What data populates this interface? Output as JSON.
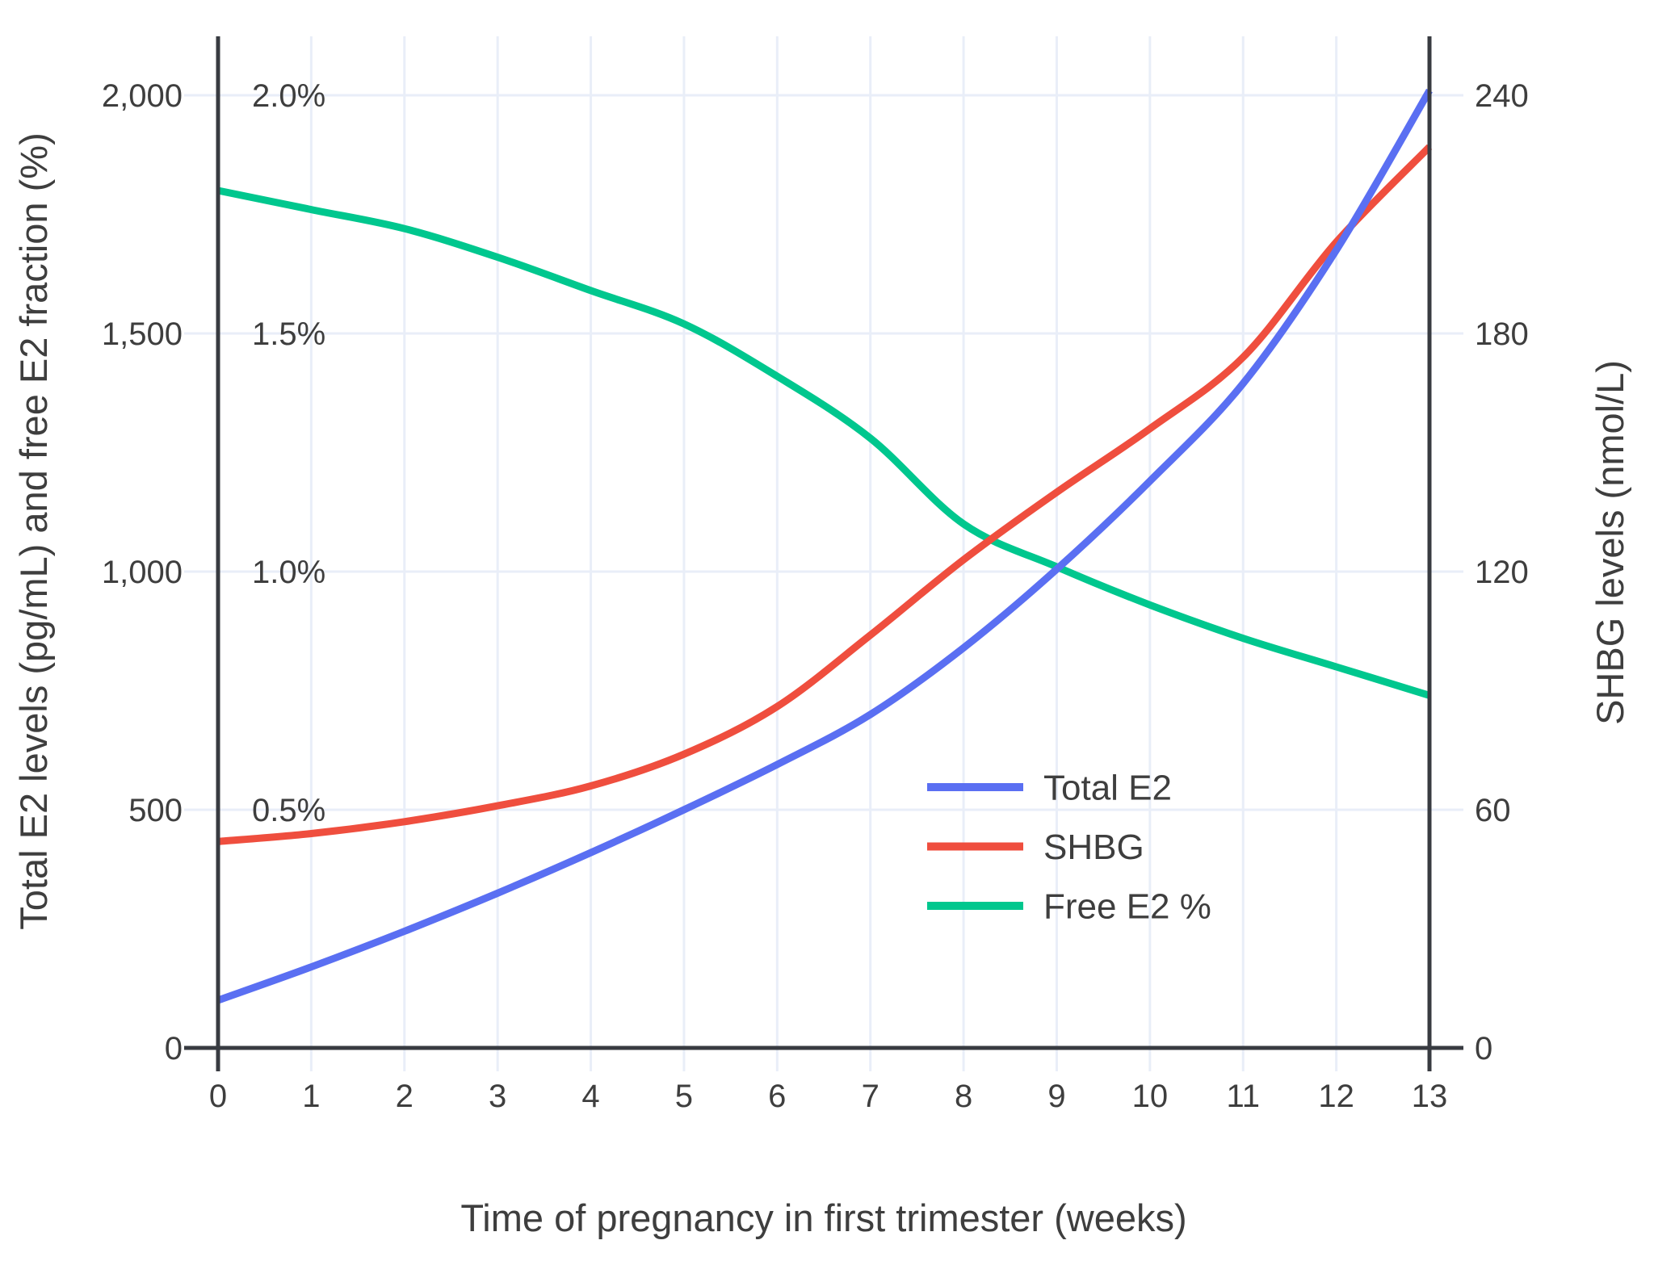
{
  "chart_data": {
    "type": "line",
    "title": "",
    "x_values": [
      0,
      1,
      2,
      3,
      4,
      5,
      6,
      7,
      8,
      9,
      10,
      11,
      12,
      13
    ],
    "xlabel": "Time of pregnancy in first trimester (weeks)",
    "ylabel_left": "Total E2 levels (pg/mL) and free E2 fraction (%)",
    "ylabel_right": "SHBG levels (nmol/L)",
    "grid": true,
    "legend_position": "inside-right-middle",
    "axes": {
      "x_ticks": [
        {
          "value": 0,
          "label": "0"
        },
        {
          "value": 1,
          "label": "1"
        },
        {
          "value": 2,
          "label": "2"
        },
        {
          "value": 3,
          "label": "3"
        },
        {
          "value": 4,
          "label": "4"
        },
        {
          "value": 5,
          "label": "5"
        },
        {
          "value": 6,
          "label": "6"
        },
        {
          "value": 7,
          "label": "7"
        },
        {
          "value": 8,
          "label": "8"
        },
        {
          "value": 9,
          "label": "9"
        },
        {
          "value": 10,
          "label": "10"
        },
        {
          "value": 11,
          "label": "11"
        },
        {
          "value": 12,
          "label": "12"
        },
        {
          "value": 13,
          "label": "13"
        }
      ],
      "left_ticks": [
        {
          "value": 0,
          "label": "0"
        },
        {
          "value": 500,
          "label": "500"
        },
        {
          "value": 1000,
          "label": "1,000"
        },
        {
          "value": 1500,
          "label": "1,500"
        },
        {
          "value": 2000,
          "label": "2,000"
        }
      ],
      "left_percent_ticks": [
        {
          "value": 0.5,
          "label": "0.5%"
        },
        {
          "value": 1.0,
          "label": "1.0%"
        },
        {
          "value": 1.5,
          "label": "1.5%"
        },
        {
          "value": 2.0,
          "label": "2.0%"
        }
      ],
      "right_ticks": [
        {
          "value": 0,
          "label": "0"
        },
        {
          "value": 60,
          "label": "60"
        },
        {
          "value": 120,
          "label": "120"
        },
        {
          "value": 180,
          "label": "180"
        },
        {
          "value": 240,
          "label": "240"
        }
      ],
      "left_range_pg": [
        0,
        2000
      ],
      "left_range_pct": [
        0,
        2.0
      ],
      "right_range_nmol": [
        0,
        240
      ],
      "x_range_weeks": [
        0,
        13
      ]
    },
    "series": [
      {
        "name": "Total E2",
        "unit": "pg/mL",
        "scale": "pg",
        "color": "#5A6FF2",
        "values": [
          100,
          170,
          245,
          325,
          410,
          500,
          595,
          700,
          840,
          1005,
          1190,
          1395,
          1675,
          2010
        ]
      },
      {
        "name": "SHBG",
        "unit": "nmol/L",
        "scale": "nmol",
        "color": "#EF4E3E",
        "values": [
          52,
          54,
          57,
          61,
          66,
          74,
          86,
          104,
          123,
          140,
          156,
          174,
          203,
          227
        ]
      },
      {
        "name": "Free E2 %",
        "unit": "%",
        "scale": "pct",
        "color": "#00C78E",
        "values": [
          1.8,
          1.76,
          1.72,
          1.66,
          1.59,
          1.52,
          1.41,
          1.28,
          1.1,
          1.01,
          0.93,
          0.86,
          0.8,
          0.74
        ]
      }
    ],
    "palette": {
      "grid": "#E9EEF8",
      "axis": "#383B41",
      "text": "#3E3E3E",
      "background": "#FFFFFF"
    }
  }
}
